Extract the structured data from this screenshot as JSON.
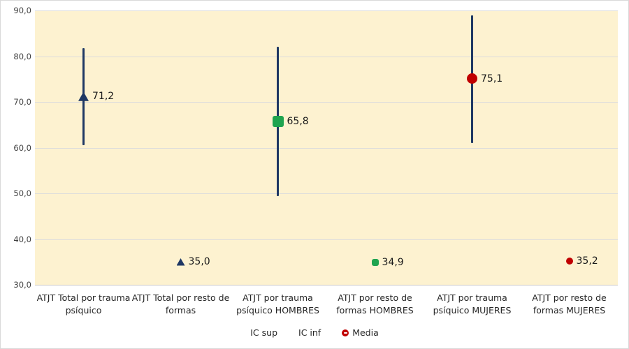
{
  "chart": {
    "plot_background": "#fdf2d0",
    "outer_background": "#ffffff",
    "frame_border_color": "#d9d9d9",
    "gridline_color": "#dcdcdc",
    "ci_line_color": "#1f3864",
    "colors": {
      "navy": "#1f3864",
      "green": "#1fa44f",
      "red": "#c00000"
    }
  },
  "chart_data": {
    "type": "scatter",
    "subtype": "confidence-interval-plot",
    "title": "",
    "grid": true,
    "y_axis": {
      "min": 30,
      "max": 90,
      "step": 10,
      "ticks": [
        {
          "value": 90,
          "label": "90,0"
        },
        {
          "value": 80,
          "label": "80,0"
        },
        {
          "value": 70,
          "label": "70,0"
        },
        {
          "value": 60,
          "label": "60,0"
        },
        {
          "value": 50,
          "label": "50,0"
        },
        {
          "value": 40,
          "label": "40,0"
        },
        {
          "value": 30,
          "label": "30,0"
        }
      ]
    },
    "categories": [
      "ATJT Total por trauma psíquico",
      "ATJT Total por resto de formas",
      "ATJT por trauma psíquico HOMBRES",
      "ATJT por resto de formas HOMBRES",
      "ATJT por trauma psíquico MUJERES",
      "ATJT por resto de formas MUJERES"
    ],
    "points": [
      {
        "media": 71.2,
        "label": "71,2",
        "ic_sup": 81.7,
        "ic_inf": 60.5,
        "marker": "triangle",
        "color": "#1f3864",
        "size": 15
      },
      {
        "media": 35.0,
        "label": "35,0",
        "ic_sup": null,
        "ic_inf": null,
        "marker": "triangle",
        "color": "#1f3864",
        "size": 12
      },
      {
        "media": 65.8,
        "label": "65,8",
        "ic_sup": 82.0,
        "ic_inf": 49.4,
        "marker": "square",
        "color": "#1fa44f",
        "size": 16
      },
      {
        "media": 34.9,
        "label": "34,9",
        "ic_sup": null,
        "ic_inf": null,
        "marker": "square",
        "color": "#1fa44f",
        "size": 10
      },
      {
        "media": 75.1,
        "label": "75,1",
        "ic_sup": 88.9,
        "ic_inf": 61.0,
        "marker": "circle",
        "color": "#c00000",
        "size": 15
      },
      {
        "media": 35.2,
        "label": "35,2",
        "ic_sup": null,
        "ic_inf": null,
        "marker": "circle",
        "color": "#c00000",
        "size": 10
      }
    ],
    "legend": {
      "position": "bottom",
      "items": [
        {
          "label": "IC sup",
          "marker": "none",
          "color": null
        },
        {
          "label": "IC inf",
          "marker": "none",
          "color": null
        },
        {
          "label": "Media",
          "marker": "circle",
          "color": "#c00000"
        }
      ]
    }
  }
}
